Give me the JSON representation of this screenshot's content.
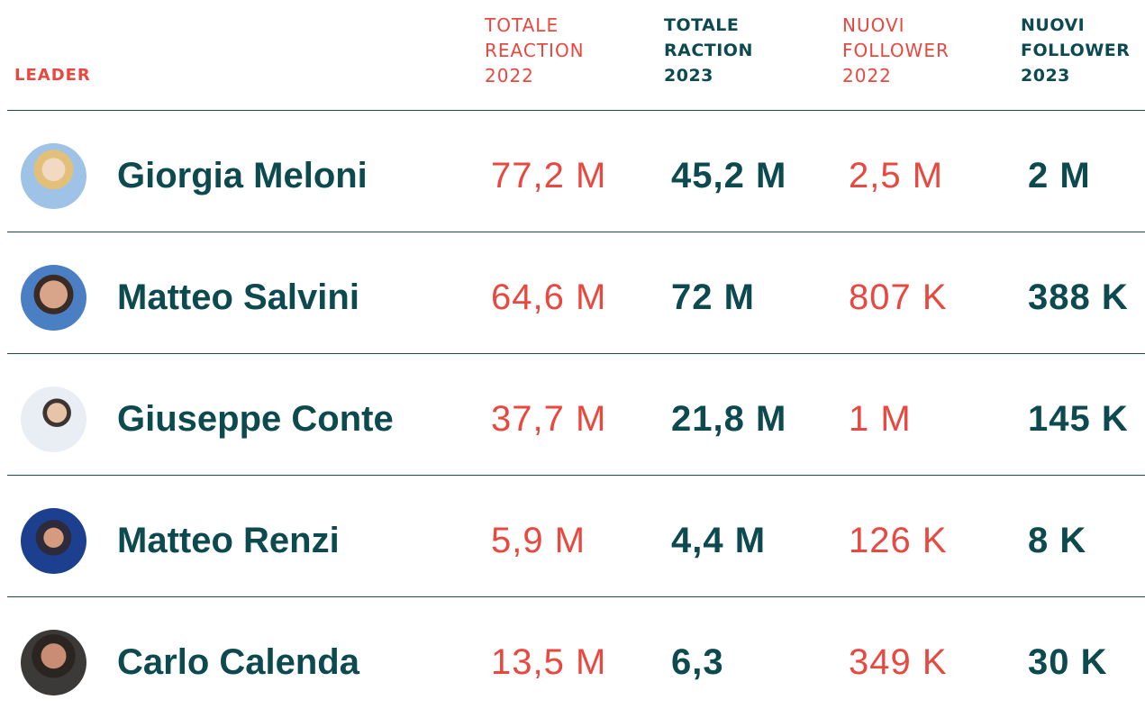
{
  "table": {
    "header": [
      [
        "LEADER"
      ],
      [
        "TOTALE",
        "REACTION",
        "2022"
      ],
      [
        "TOTALE",
        "RACTION",
        "2023"
      ],
      [
        "NUOVI",
        "FOLLOWER",
        "2022"
      ],
      [
        "NUOVI",
        "FOLLOWER",
        "2023"
      ]
    ],
    "rows": [
      [
        "Giorgia Meloni",
        "77,2 M",
        "45,2 M",
        "2,5 M",
        "2 M"
      ],
      [
        "Matteo Salvini",
        "64,6 M",
        "72 M",
        "807 K",
        "388 K"
      ],
      [
        "Giuseppe Conte",
        "37,7 M",
        "21,8 M",
        "1 M",
        "145 K"
      ],
      [
        "Matteo Renzi",
        "5,9 M",
        "4,4 M",
        "126 K",
        "8 K"
      ],
      [
        "Carlo Calenda",
        "13,5 M",
        "6,3",
        "349 K",
        "30 K"
      ]
    ]
  }
}
